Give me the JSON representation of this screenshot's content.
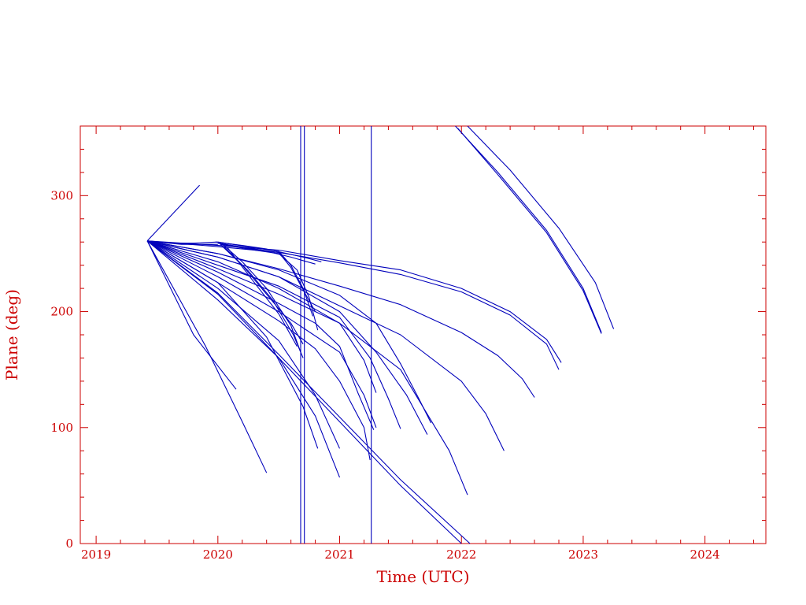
{
  "chart_data": {
    "type": "line",
    "title": "",
    "xlabel": "Time (UTC)",
    "ylabel": "Plane (deg)",
    "xlim": [
      2018.87,
      2024.5
    ],
    "ylim": [
      0,
      360
    ],
    "x_ticks": [
      "2019",
      "2020",
      "2021",
      "2022",
      "2023",
      "2024"
    ],
    "y_ticks": [
      "0",
      "100",
      "200",
      "300"
    ],
    "grid": false,
    "axis_color": "#cc0000",
    "line_color": "#0000bb",
    "series": [
      {
        "x": [
          2019.42,
          2019.85
        ],
        "y": [
          261,
          309
        ]
      },
      {
        "x": [
          2019.42,
          2019.6,
          2019.8,
          2020.0
        ],
        "y": [
          261,
          259,
          259,
          260
        ]
      },
      {
        "x": [
          2019.42,
          2019.7,
          2020.0
        ],
        "y": [
          261,
          258,
          258
        ]
      },
      {
        "x": [
          2019.98,
          2020.2,
          2020.4,
          2020.7,
          2020.85
        ],
        "y": [
          260,
          257,
          254,
          247,
          243
        ]
      },
      {
        "x": [
          2020.0,
          2020.2,
          2020.4,
          2020.6,
          2020.8
        ],
        "y": [
          259,
          255,
          252,
          247,
          241
        ]
      },
      {
        "x": [
          2020.0,
          2020.3,
          2020.5,
          2020.6,
          2020.7,
          2020.78
        ],
        "y": [
          260,
          255,
          252,
          240,
          220,
          196
        ]
      },
      {
        "x": [
          2020.0,
          2020.3,
          2020.5,
          2020.6,
          2020.72,
          2020.8
        ],
        "y": [
          259,
          254,
          251,
          238,
          215,
          200
        ]
      },
      {
        "x": [
          2020.02,
          2020.3,
          2020.5,
          2020.65,
          2020.75,
          2020.82
        ],
        "y": [
          258,
          253,
          250,
          236,
          212,
          184
        ]
      },
      {
        "x": [
          2020.02,
          2020.2,
          2020.4,
          2020.6,
          2020.7
        ],
        "y": [
          258,
          240,
          215,
          190,
          172
        ]
      },
      {
        "x": [
          2020.05,
          2020.2,
          2020.4,
          2020.6,
          2020.68
        ],
        "y": [
          257,
          243,
          220,
          188,
          165
        ]
      },
      {
        "x": [
          2020.05,
          2020.25,
          2020.45,
          2020.62,
          2020.7
        ],
        "y": [
          256,
          235,
          210,
          180,
          160
        ]
      },
      {
        "x": [
          2020.08,
          2020.3,
          2020.5,
          2020.65
        ],
        "y": [
          255,
          225,
          198,
          170
        ]
      },
      {
        "x": [
          2019.42,
          2020.0,
          2020.5,
          2021.0,
          2021.5,
          2022.0,
          2022.4,
          2022.7,
          2022.82
        ],
        "y": [
          261,
          257,
          253,
          244,
          236,
          220,
          200,
          176,
          156
        ]
      },
      {
        "x": [
          2019.42,
          2020.0,
          2020.5,
          2021.0,
          2021.5,
          2022.0,
          2022.4,
          2022.7,
          2022.8
        ],
        "y": [
          261,
          256,
          251,
          242,
          232,
          217,
          197,
          172,
          150
        ]
      },
      {
        "x": [
          2019.42,
          2020.0,
          2020.5,
          2021.0,
          2021.5,
          2022.0,
          2022.3,
          2022.5,
          2022.6
        ],
        "y": [
          261,
          250,
          237,
          222,
          206,
          182,
          162,
          142,
          126
        ]
      },
      {
        "x": [
          2019.42,
          2020.0,
          2020.5,
          2021.0,
          2021.5,
          2022.0,
          2022.2,
          2022.35
        ],
        "y": [
          261,
          247,
          230,
          205,
          180,
          140,
          112,
          80
        ]
      },
      {
        "x": [
          2019.42,
          2020.0,
          2020.5,
          2021.0,
          2021.5,
          2021.9,
          2022.05
        ],
        "y": [
          261,
          243,
          220,
          190,
          150,
          80,
          42
        ]
      },
      {
        "x": [
          2019.42,
          2020.0,
          2020.5,
          2021.0,
          2021.3,
          2021.5,
          2021.65,
          2021.75
        ],
        "y": [
          261,
          250,
          236,
          214,
          190,
          155,
          125,
          104
        ]
      },
      {
        "x": [
          2019.42,
          2020.0,
          2020.5,
          2021.0,
          2021.3,
          2021.55,
          2021.72
        ],
        "y": [
          261,
          247,
          230,
          200,
          165,
          128,
          94
        ]
      },
      {
        "x": [
          2019.42,
          2020.0,
          2020.5,
          2021.0,
          2021.25,
          2021.4,
          2021.5
        ],
        "y": [
          261,
          240,
          222,
          195,
          160,
          125,
          99
        ]
      },
      {
        "x": [
          2019.42,
          2020.0,
          2020.5,
          2021.0,
          2021.2,
          2021.3
        ],
        "y": [
          261,
          237,
          215,
          190,
          158,
          130
        ]
      },
      {
        "x": [
          2019.42,
          2020.0,
          2020.5,
          2021.0,
          2021.2,
          2021.3
        ],
        "y": [
          261,
          230,
          200,
          165,
          128,
          100
        ]
      },
      {
        "x": [
          2019.42,
          2020.0,
          2020.5,
          2020.8,
          2021.0,
          2021.15,
          2021.28
        ],
        "y": [
          261,
          234,
          207,
          190,
          170,
          130,
          98
        ]
      },
      {
        "x": [
          2019.42,
          2020.0,
          2020.5,
          2020.8,
          2021.0,
          2021.2,
          2021.25
        ],
        "y": [
          261,
          225,
          192,
          168,
          140,
          100,
          72
        ]
      },
      {
        "x": [
          2019.42,
          2020.0,
          2020.5,
          2020.8,
          2021.0
        ],
        "y": [
          261,
          210,
          160,
          110,
          57
        ]
      },
      {
        "x": [
          2019.42,
          2020.0,
          2020.5,
          2020.8,
          2021.0
        ],
        "y": [
          261,
          220,
          175,
          128,
          82
        ]
      },
      {
        "x": [
          2019.42,
          2020.0,
          2020.4,
          2020.7,
          2020.82
        ],
        "y": [
          261,
          225,
          178,
          118,
          82
        ]
      },
      {
        "x": [
          2019.42,
          2020.0,
          2020.5,
          2021.0,
          2021.5,
          2022.0
        ],
        "y": [
          261,
          215,
          160,
          105,
          50,
          0
        ]
      },
      {
        "x": [
          2019.42,
          2020.0,
          2020.5,
          2021.0,
          2021.5,
          2022.07
        ],
        "y": [
          261,
          216,
          163,
          109,
          55,
          0
        ]
      },
      {
        "x": [
          2019.42,
          2019.8,
          2020.15
        ],
        "y": [
          261,
          180,
          133
        ]
      },
      {
        "x": [
          2019.42,
          2019.9,
          2020.2,
          2020.4
        ],
        "y": [
          261,
          170,
          105,
          61
        ]
      },
      {
        "x": [
          2021.95,
          2022.3,
          2022.7,
          2023.0,
          2023.15
        ],
        "y": [
          360,
          320,
          270,
          220,
          182
        ]
      },
      {
        "x": [
          2021.97,
          2022.3,
          2022.7,
          2023.0,
          2023.15
        ],
        "y": [
          358,
          318,
          268,
          218,
          181
        ]
      },
      {
        "x": [
          2022.05,
          2022.4,
          2022.8,
          2023.1,
          2023.25
        ],
        "y": [
          360,
          322,
          272,
          225,
          185
        ]
      },
      {
        "x": [
          2020.68,
          2020.68
        ],
        "y": [
          0,
          360
        ]
      },
      {
        "x": [
          2020.71,
          2020.71
        ],
        "y": [
          0,
          360
        ]
      },
      {
        "x": [
          2021.26,
          2021.26
        ],
        "y": [
          0,
          360
        ]
      }
    ]
  }
}
